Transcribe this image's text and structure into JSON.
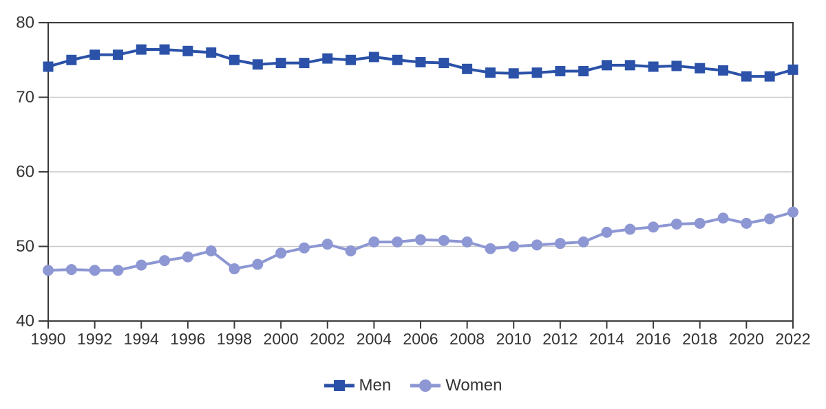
{
  "chart_data": {
    "type": "line",
    "x": [
      1990,
      1991,
      1992,
      1993,
      1994,
      1995,
      1996,
      1997,
      1998,
      1999,
      2000,
      2001,
      2002,
      2003,
      2004,
      2005,
      2006,
      2007,
      2008,
      2009,
      2010,
      2011,
      2012,
      2013,
      2014,
      2015,
      2016,
      2017,
      2018,
      2019,
      2020,
      2021,
      2022
    ],
    "series": [
      {
        "name": "Men",
        "marker": "square",
        "color": "#2b52a8",
        "values": [
          74.1,
          75.0,
          75.7,
          75.7,
          76.4,
          76.4,
          76.2,
          76.0,
          75.0,
          74.4,
          74.6,
          74.6,
          75.2,
          75.0,
          75.4,
          75.0,
          74.7,
          74.6,
          73.8,
          73.3,
          73.2,
          73.3,
          73.5,
          73.5,
          74.3,
          74.3,
          74.1,
          74.2,
          73.9,
          73.6,
          72.8,
          72.8,
          73.7
        ]
      },
      {
        "name": "Women",
        "marker": "circle",
        "color": "#8d97d3",
        "values": [
          46.8,
          46.9,
          46.8,
          46.8,
          47.5,
          48.1,
          48.6,
          49.4,
          47.0,
          47.6,
          49.1,
          49.8,
          50.3,
          49.4,
          50.6,
          50.6,
          50.9,
          50.8,
          50.6,
          49.7,
          50.0,
          50.2,
          50.4,
          50.6,
          51.9,
          52.3,
          52.6,
          53.0,
          53.1,
          53.8,
          53.1,
          53.7,
          54.6
        ]
      }
    ],
    "xlim": [
      1990,
      2022
    ],
    "ylim": [
      40,
      80
    ],
    "xticks": [
      1990,
      1992,
      1994,
      1996,
      1998,
      2000,
      2002,
      2004,
      2006,
      2008,
      2010,
      2012,
      2014,
      2016,
      2018,
      2020,
      2022
    ],
    "yticks": [
      40,
      50,
      60,
      70,
      80
    ],
    "grid": "horizontal",
    "legend_position": "bottom-center",
    "colors": {
      "background": "#ffffff",
      "axis": "#3a3a3a",
      "gridline": "#c9c9c9",
      "text": "#333333"
    }
  }
}
